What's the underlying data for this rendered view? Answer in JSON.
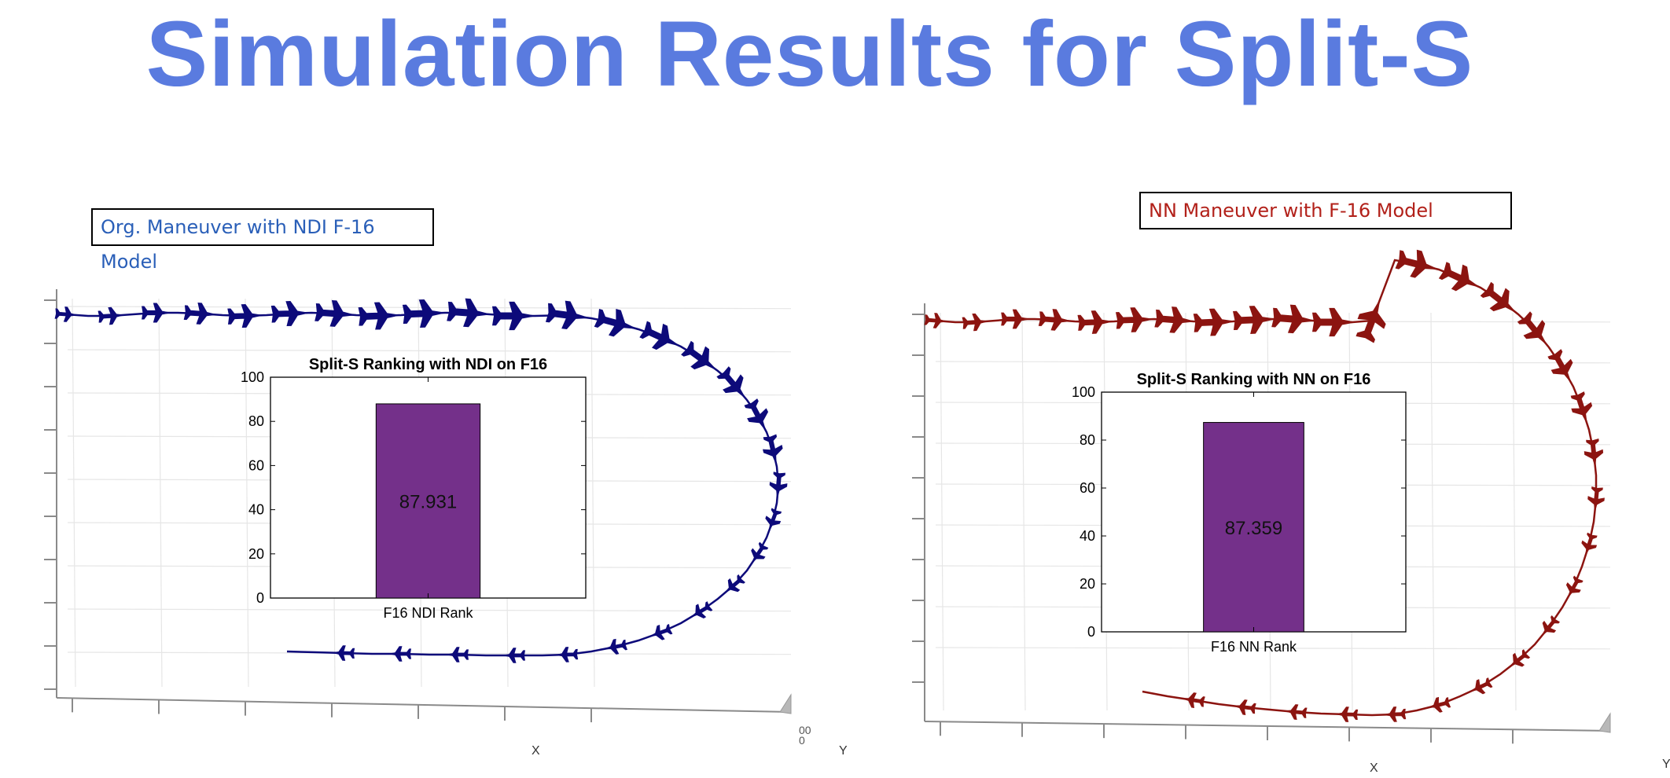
{
  "title": "Simulation Results for Split-S",
  "panels": [
    {
      "caption": "Org. Maneuver with NDI  F-16 Model",
      "caption_color": "#2a5fb8",
      "trajectory_color": "#0d0a7a",
      "axis_labels": {
        "x": "X",
        "y": "Y"
      },
      "cut_off_tick_text": "00\n0"
    },
    {
      "caption": "NN Maneuver with  F-16 Model",
      "caption_color": "#b2211a",
      "trajectory_color": "#8c1410",
      "axis_labels": {
        "x": "X",
        "y": "Y"
      }
    }
  ],
  "chart_data": [
    {
      "type": "bar",
      "title": "Split-S Ranking with NDI on F16",
      "categories": [
        "F16 NDI Rank"
      ],
      "values": [
        87.931
      ],
      "value_labels": [
        "87.931"
      ],
      "ylim": [
        0,
        100
      ],
      "yticks": [
        0,
        20,
        40,
        60,
        80,
        100
      ],
      "bar_color": "#74308a",
      "xlabel": "",
      "ylabel": ""
    },
    {
      "type": "bar",
      "title": "Split-S Ranking with NN on F16",
      "categories": [
        "F16 NN Rank"
      ],
      "values": [
        87.359
      ],
      "value_labels": [
        "87.359"
      ],
      "ylim": [
        0,
        100
      ],
      "yticks": [
        0,
        20,
        40,
        60,
        80,
        100
      ],
      "bar_color": "#74308a",
      "xlabel": "",
      "ylabel": ""
    }
  ]
}
